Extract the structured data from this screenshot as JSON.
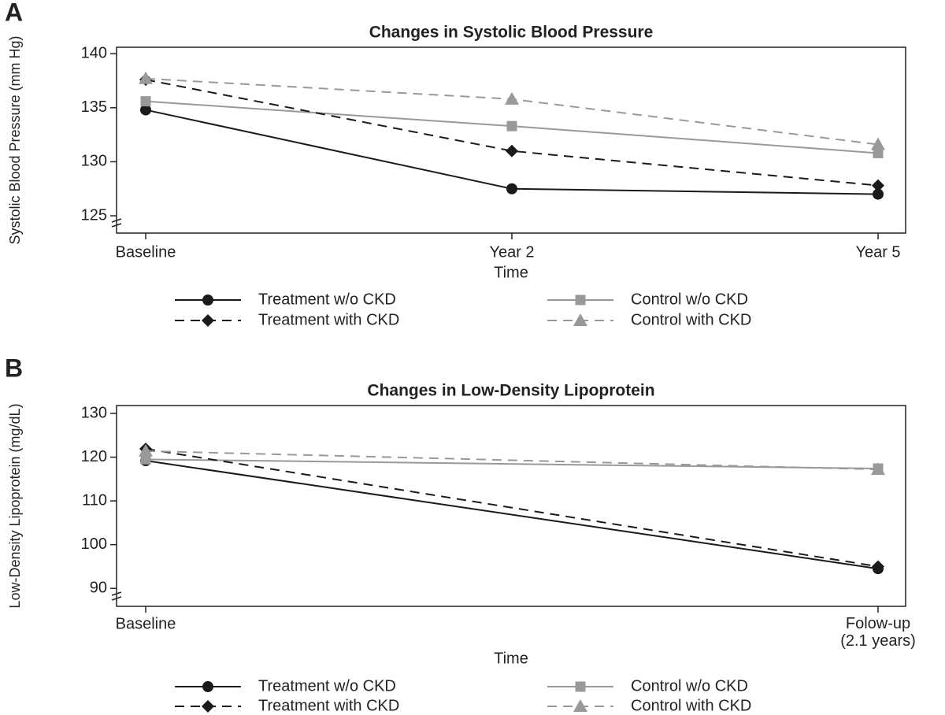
{
  "chart_data": [
    {
      "type": "line",
      "panel": "A",
      "title": "Changes in Systolic Blood Pressure",
      "x_label": "Time",
      "y_label": "Systolic Blood Pressure (mm Hg)",
      "categories": [
        "Baseline",
        "Year 2",
        "Year 5"
      ],
      "ylim": [
        123.4,
        140.6
      ],
      "yticks": [
        125,
        130,
        135,
        140
      ],
      "grid": false,
      "series": [
        {
          "name": "Treatment w/o CKD",
          "color": "#1a1a1a",
          "marker": "circle",
          "linestyle": "solid",
          "values": [
            134.8,
            127.5,
            127.0
          ]
        },
        {
          "name": "Control w/o CKD",
          "color": "#999999",
          "marker": "square",
          "linestyle": "solid",
          "values": [
            135.6,
            133.3,
            130.8
          ]
        },
        {
          "name": "Treatment with CKD",
          "color": "#1a1a1a",
          "marker": "diamond",
          "linestyle": "dashed",
          "values": [
            137.6,
            131.0,
            127.8
          ]
        },
        {
          "name": "Control with CKD",
          "color": "#999999",
          "marker": "triangle",
          "linestyle": "dashed",
          "values": [
            137.7,
            135.8,
            131.6
          ]
        }
      ]
    },
    {
      "type": "line",
      "panel": "B",
      "title": "Changes in Low-Density Lipoprotein",
      "x_label": "Time",
      "y_label": "Low-Density Lipoprotein (mg/dL)",
      "categories": [
        "Baseline",
        "Folow-up\n(2.1 years)"
      ],
      "ylim": [
        85.9,
        131.8
      ],
      "yticks": [
        90,
        100,
        110,
        120,
        130
      ],
      "grid": false,
      "series": [
        {
          "name": "Treatment w/o CKD",
          "color": "#1a1a1a",
          "marker": "circle",
          "linestyle": "solid",
          "values": [
            119.2,
            94.5
          ]
        },
        {
          "name": "Control w/o CKD",
          "color": "#999999",
          "marker": "square",
          "linestyle": "solid",
          "values": [
            119.5,
            117.4
          ]
        },
        {
          "name": "Treatment with CKD",
          "color": "#1a1a1a",
          "marker": "diamond",
          "linestyle": "dashed",
          "values": [
            121.9,
            95.0
          ]
        },
        {
          "name": "Control with CKD",
          "color": "#999999",
          "marker": "triangle",
          "linestyle": "dashed",
          "values": [
            121.4,
            117.2
          ]
        }
      ]
    }
  ]
}
